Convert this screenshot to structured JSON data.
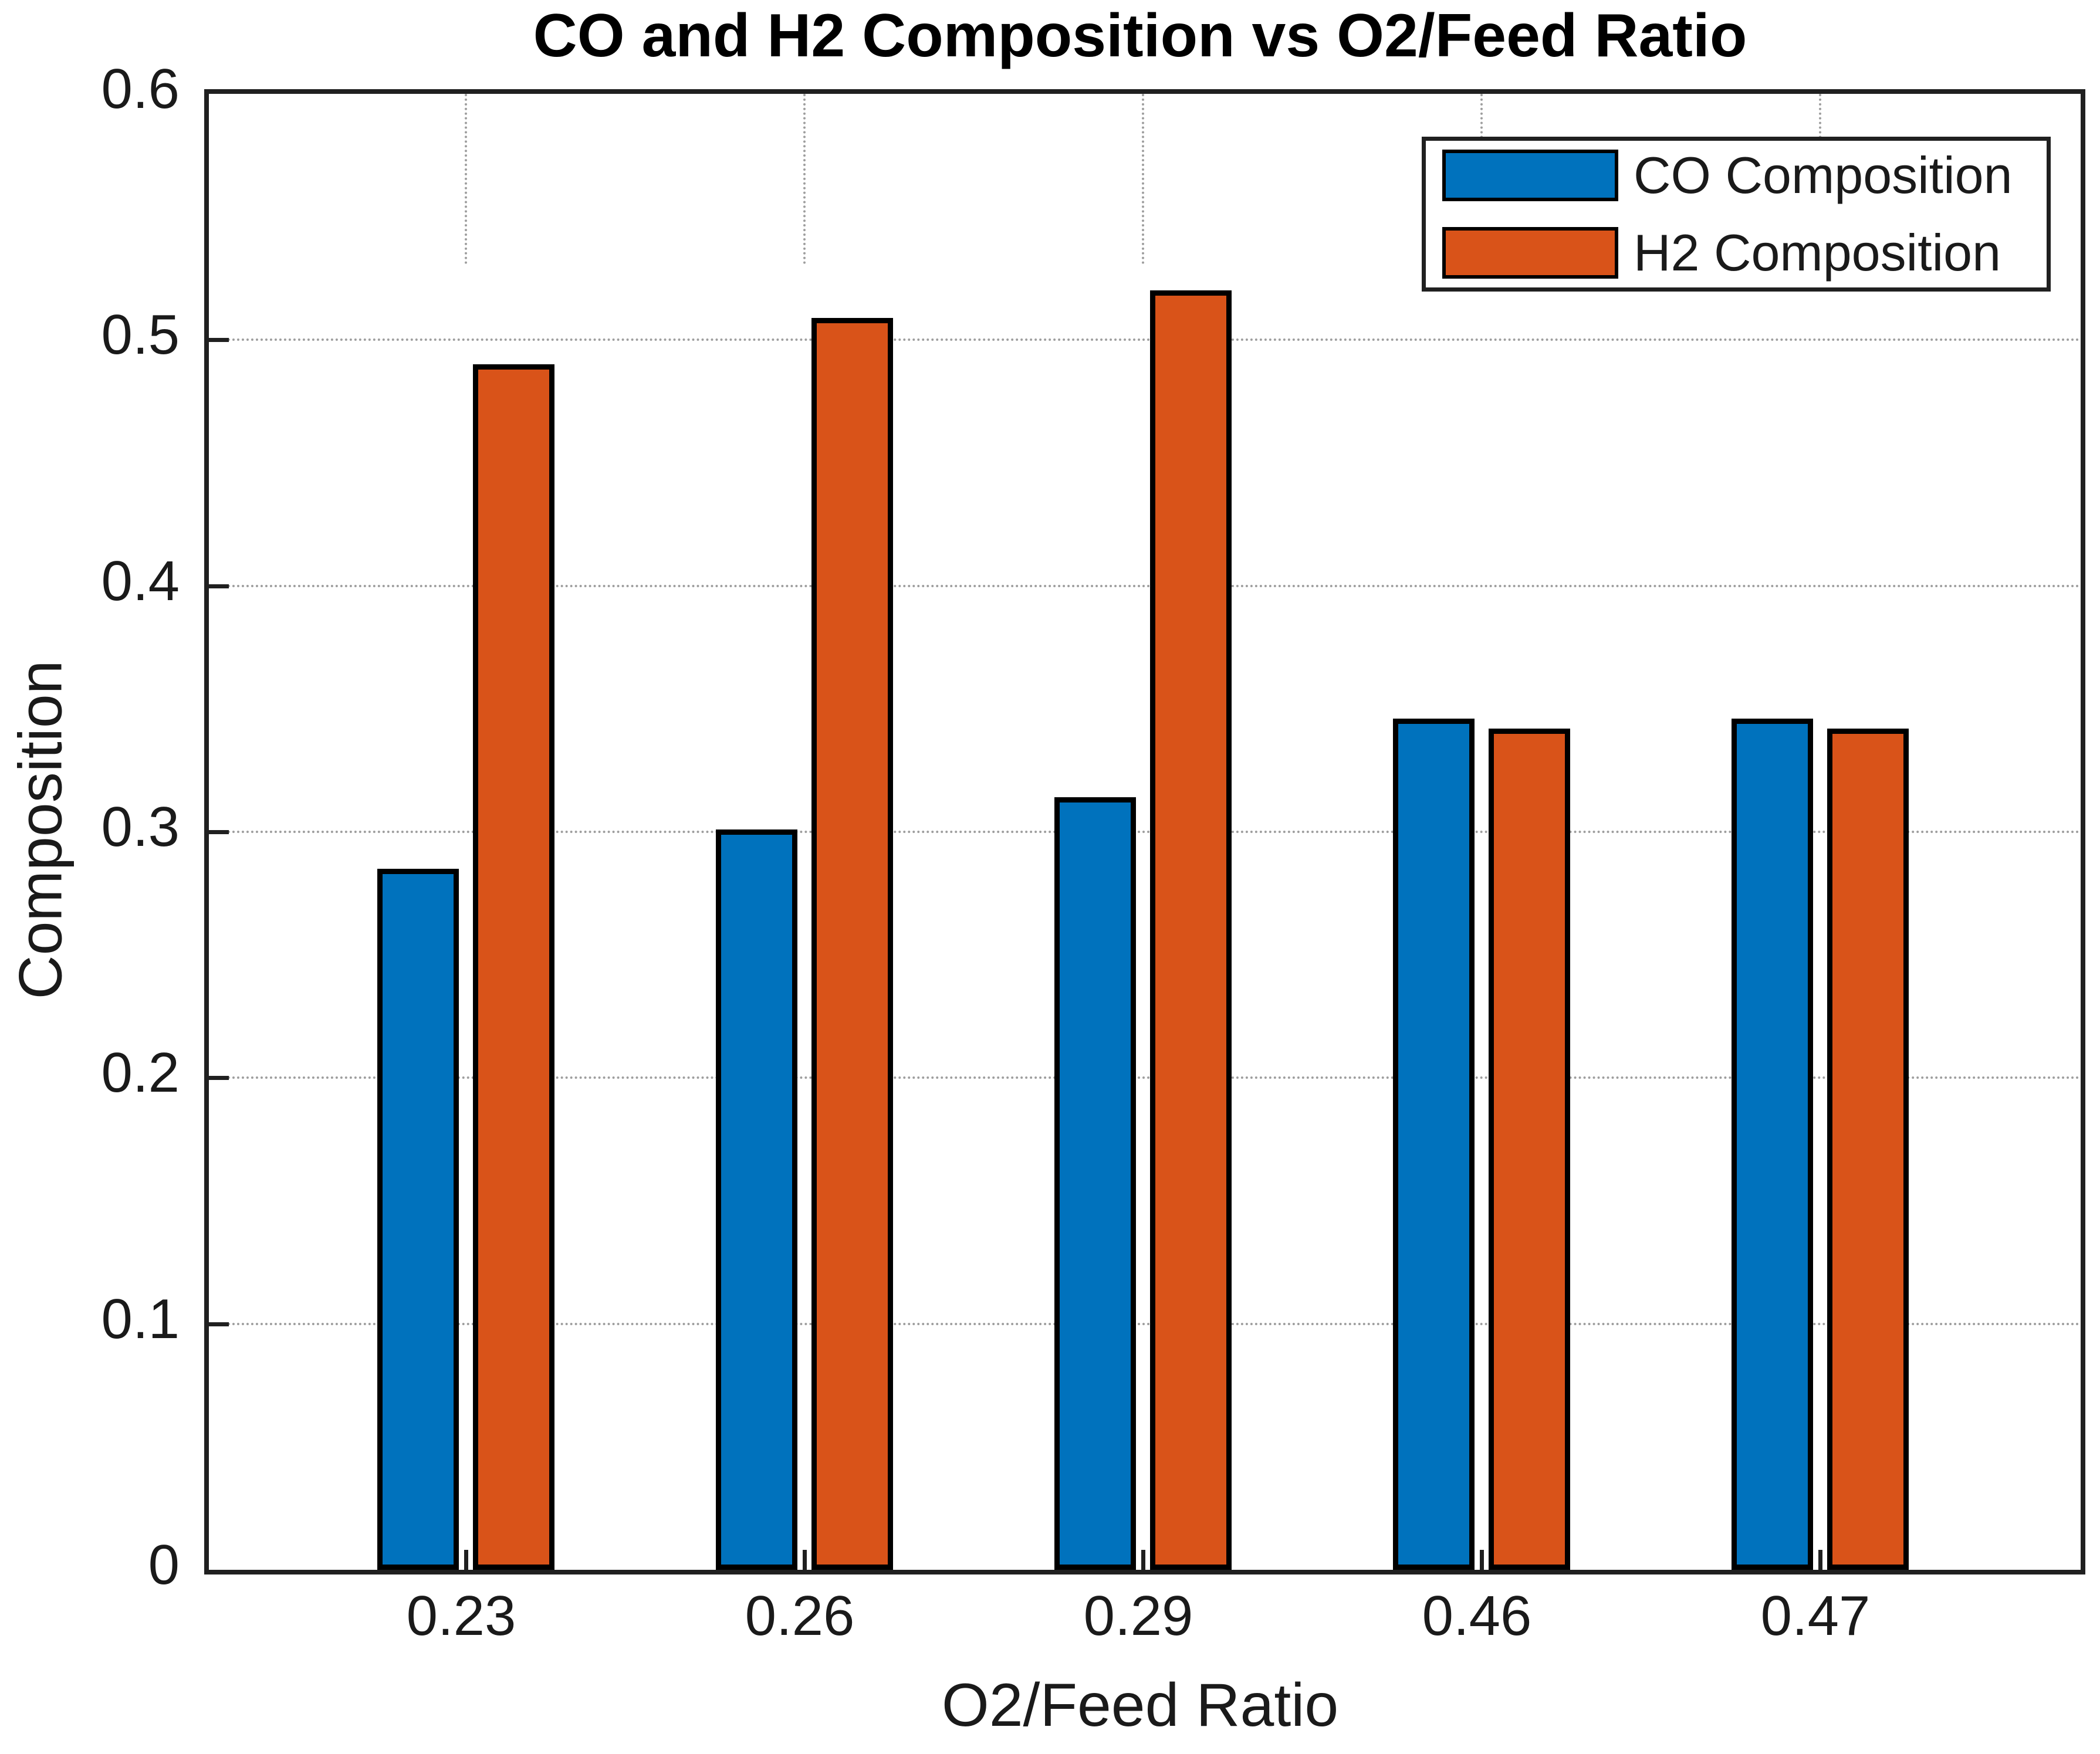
{
  "chart_data": {
    "type": "bar",
    "title": "CO and H2 Composition vs O2/Feed Ratio",
    "xlabel": "O2/Feed Ratio",
    "ylabel": "Composition",
    "categories": [
      "0.23",
      "0.26",
      "0.29",
      "0.46",
      "0.47"
    ],
    "series": [
      {
        "name": "CO Composition",
        "color": "#0072BD",
        "values": [
          0.285,
          0.301,
          0.314,
          0.346,
          0.346
        ]
      },
      {
        "name": "H2 Composition",
        "color": "#D95319",
        "values": [
          0.49,
          0.509,
          0.52,
          0.342,
          0.342
        ]
      }
    ],
    "ylim": [
      0,
      0.6
    ],
    "yticks": [
      0,
      0.1,
      0.2,
      0.3,
      0.4,
      0.5,
      0.6
    ],
    "yticklabels": [
      "0",
      "0.1",
      "0.2",
      "0.3",
      "0.4",
      "0.5",
      "0.6"
    ],
    "grid": true,
    "grid_color": "#9e9e9e",
    "bar_edge_color": "#000000",
    "axis_color": "#202020",
    "legend_position": "top-right"
  }
}
